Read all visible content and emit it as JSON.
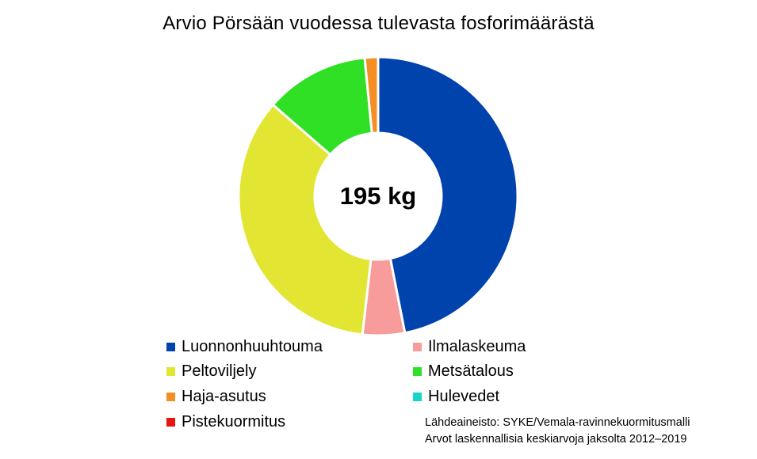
{
  "chart_data": {
    "type": "donut",
    "title": "Arvio Pörsään vuodessa tulevasta fosforimäärästä",
    "center_label": "195 kg",
    "unit": "kg",
    "total": 195,
    "slices": [
      {
        "label": "Luonnonhuuhtouma",
        "value": 91.5,
        "color": "#0043ac"
      },
      {
        "label": "Ilmalaskeuma",
        "value": 9.5,
        "color": "#f89b9b"
      },
      {
        "label": "Peltoviljely",
        "value": 67.5,
        "color": "#e3e533"
      },
      {
        "label": "Metsätalous",
        "value": 23.5,
        "color": "#2fe024"
      },
      {
        "label": "Haja-asutus",
        "value": 3.0,
        "color": "#f58f24"
      },
      {
        "label": "Hulevedet",
        "value": 0,
        "color": "#15d6c8"
      },
      {
        "label": "Pistekuormitus",
        "value": 0,
        "color": "#e8140f"
      }
    ],
    "legend_position": "bottom",
    "source_lines": [
      "Lähdeaineisto: SYKE/Vemala-ravinnekuormitusmalli",
      "Arvot laskennallisia keskiarvoja jaksolta 2012–2019"
    ]
  }
}
